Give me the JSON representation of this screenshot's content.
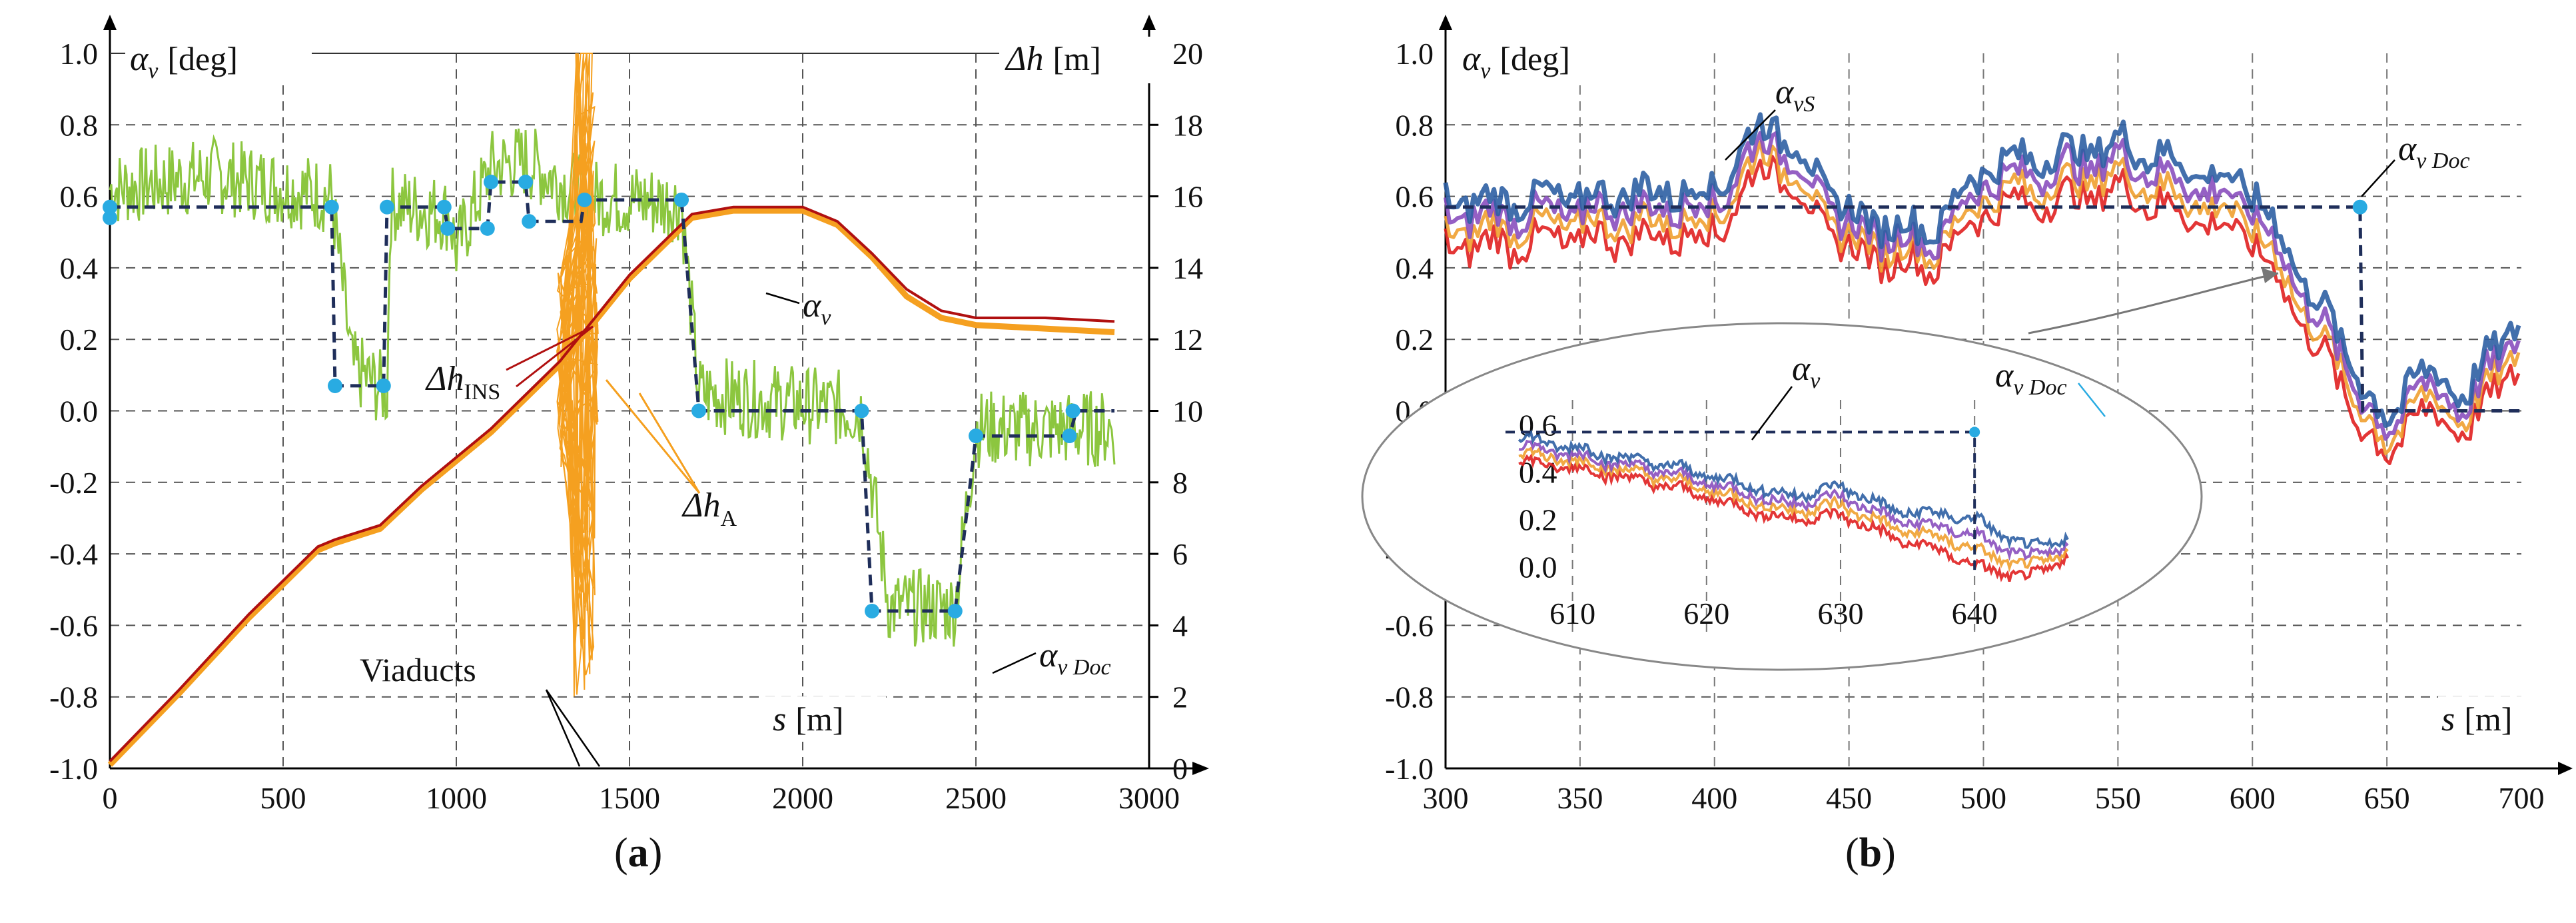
{
  "panel_a": {
    "caption": "a",
    "left_axis_symbol": "α",
    "left_axis_sub": "v",
    "left_axis_unit": "[deg]",
    "right_axis_symbol": "Δh",
    "right_axis_unit": "[m]",
    "x_axis_symbol": "s",
    "x_axis_unit": "[m]",
    "label_alpha": "α",
    "label_alpha_sub": "v",
    "label_alpha_doc": "α",
    "label_alpha_doc_sub": "v Doc",
    "label_dh_ins": "Δh",
    "label_dh_ins_sub": "INS",
    "label_dh_a": "Δh",
    "label_dh_a_sub": "A",
    "label_viaducts": "Viaducts"
  },
  "panel_b": {
    "caption": "b",
    "left_axis_symbol": "α",
    "left_axis_sub": "v",
    "left_axis_unit": "[deg]",
    "x_axis_symbol": "s",
    "x_axis_unit": "[m]",
    "label_alpha_vs": "α",
    "label_alpha_vs_sub": "vS",
    "label_alpha_doc": "α",
    "label_alpha_doc_sub": "v Doc",
    "inset_label_alpha": "α",
    "inset_label_alpha_sub": "v",
    "inset_label_doc": "α",
    "inset_label_doc_sub": "v Doc"
  },
  "colors": {
    "alpha_green": "#8cc63f",
    "dh_ins_red": "#b01010",
    "dh_a_orange": "#f5a020",
    "doc_dash": "#1f2e5a",
    "doc_points": "#29abe2",
    "series_blue": "#2e5fa3",
    "series_purple": "#8a4fbe",
    "series_red": "#e02020",
    "series_orange": "#f0a030"
  },
  "chart_data": [
    {
      "type": "line",
      "title": "(a)",
      "xlabel": "s [m]",
      "ylabel": "αv [deg]",
      "y2label": "Δh [m]",
      "xlim": [
        0,
        3000
      ],
      "ylim": [
        -1.0,
        1.0
      ],
      "y2lim": [
        0,
        20
      ],
      "x_ticks": [
        0,
        500,
        1000,
        1500,
        2000,
        2500,
        3000
      ],
      "y_ticks": [
        -1.0,
        -0.8,
        -0.6,
        -0.4,
        -0.2,
        0.0,
        0.2,
        0.4,
        0.6,
        0.8,
        1.0
      ],
      "y_tick_labels": [
        "-1.0",
        "-0.8",
        "-0.6",
        "-0.4",
        "-0.2",
        "0.0",
        "0.2",
        "0.4",
        "0.6",
        "0.8",
        "1.0"
      ],
      "y2_ticks": [
        0,
        2,
        4,
        6,
        8,
        10,
        12,
        14,
        16,
        18,
        20
      ],
      "series": [
        {
          "name": "αv Doc",
          "axis": "left",
          "style": "dashed-step",
          "points": [
            [
              0,
              0.57
            ],
            [
              640,
              0.57
            ],
            [
              650,
              0.07
            ],
            [
              790,
              0.07
            ],
            [
              800,
              0.57
            ],
            [
              965,
              0.57
            ],
            [
              975,
              0.51
            ],
            [
              1090,
              0.51
            ],
            [
              1100,
              0.64
            ],
            [
              1200,
              0.64
            ],
            [
              1210,
              0.53
            ],
            [
              1360,
              0.53
            ],
            [
              1370,
              0.59
            ],
            [
              1650,
              0.59
            ],
            [
              1700,
              0.0
            ],
            [
              2170,
              0.0
            ],
            [
              2200,
              -0.56
            ],
            [
              2440,
              -0.56
            ],
            [
              2500,
              -0.07
            ],
            [
              2770,
              -0.07
            ],
            [
              2790,
              0.0
            ],
            [
              2900,
              0.0
            ]
          ]
        },
        {
          "name": "Δh INS",
          "axis": "right",
          "points": [
            [
              0,
              0.2
            ],
            [
              200,
              2.2
            ],
            [
              400,
              4.3
            ],
            [
              600,
              6.2
            ],
            [
              650,
              6.4
            ],
            [
              780,
              6.8
            ],
            [
              900,
              7.9
            ],
            [
              1100,
              9.5
            ],
            [
              1300,
              11.4
            ],
            [
              1500,
              13.8
            ],
            [
              1680,
              15.5
            ],
            [
              1800,
              15.7
            ],
            [
              2000,
              15.7
            ],
            [
              2100,
              15.3
            ],
            [
              2200,
              14.4
            ],
            [
              2300,
              13.4
            ],
            [
              2400,
              12.8
            ],
            [
              2500,
              12.6
            ],
            [
              2700,
              12.6
            ],
            [
              2900,
              12.5
            ]
          ]
        },
        {
          "name": "Δh A",
          "axis": "right",
          "points": [
            [
              0,
              0.1
            ],
            [
              200,
              2.1
            ],
            [
              400,
              4.2
            ],
            [
              600,
              6.1
            ],
            [
              650,
              6.3
            ],
            [
              780,
              6.7
            ],
            [
              900,
              7.8
            ],
            [
              1100,
              9.4
            ],
            [
              1300,
              11.3
            ],
            [
              1500,
              13.7
            ],
            [
              1680,
              15.4
            ],
            [
              1800,
              15.6
            ],
            [
              2000,
              15.6
            ],
            [
              2100,
              15.2
            ],
            [
              2200,
              14.3
            ],
            [
              2300,
              13.2
            ],
            [
              2400,
              12.6
            ],
            [
              2500,
              12.4
            ],
            [
              2700,
              12.3
            ],
            [
              2900,
              12.2
            ]
          ]
        },
        {
          "name": "αv",
          "axis": "left",
          "points": [
            [
              0,
              0.62
            ],
            [
              300,
              0.66
            ],
            [
              640,
              0.6
            ],
            [
              700,
              0.12
            ],
            [
              800,
              0.05
            ],
            [
              810,
              0.58
            ],
            [
              980,
              0.55
            ],
            [
              1000,
              0.45
            ],
            [
              1100,
              0.68
            ],
            [
              1200,
              0.7
            ],
            [
              1370,
              0.6
            ],
            [
              1650,
              0.58
            ],
            [
              1700,
              0.05
            ],
            [
              2170,
              0.0
            ],
            [
              2250,
              -0.55
            ],
            [
              2440,
              -0.55
            ],
            [
              2500,
              -0.05
            ],
            [
              2900,
              -0.05
            ]
          ]
        }
      ],
      "doc_points": [
        [
          0,
          0.54
        ],
        [
          0,
          0.57
        ],
        [
          640,
          0.57
        ],
        [
          650,
          0.07
        ],
        [
          790,
          0.07
        ],
        [
          800,
          0.57
        ],
        [
          965,
          0.57
        ],
        [
          975,
          0.51
        ],
        [
          1090,
          0.51
        ],
        [
          1100,
          0.64
        ],
        [
          1200,
          0.64
        ],
        [
          1210,
          0.53
        ],
        [
          1370,
          0.59
        ],
        [
          1650,
          0.59
        ],
        [
          1700,
          0.0
        ],
        [
          2170,
          0.0
        ],
        [
          2200,
          -0.56
        ],
        [
          2440,
          -0.56
        ],
        [
          2500,
          -0.07
        ],
        [
          2770,
          -0.07
        ],
        [
          2780,
          0.0
        ]
      ]
    },
    {
      "type": "line",
      "title": "(b)",
      "xlabel": "s [m]",
      "ylabel": "αv [deg]",
      "xlim": [
        300,
        700
      ],
      "ylim": [
        -1.0,
        1.0
      ],
      "x_ticks": [
        300,
        350,
        400,
        450,
        500,
        550,
        600,
        650,
        700
      ],
      "y_ticks": [
        -1.0,
        -0.8,
        -0.6,
        -0.4,
        -0.2,
        0.0,
        0.2,
        0.4,
        0.6,
        0.8,
        1.0
      ],
      "y_tick_labels": [
        "-1.0",
        "-0.8",
        "-0.6",
        "-0.4",
        "-0.2",
        "0.0",
        "0.2",
        "0.4",
        "0.6",
        "0.8",
        "1.0"
      ],
      "series": [
        {
          "name": "αvS upper",
          "points": [
            [
              300,
              0.58
            ],
            [
              350,
              0.6
            ],
            [
              400,
              0.62
            ],
            [
              420,
              0.82
            ],
            [
              450,
              0.55
            ],
            [
              480,
              0.5
            ],
            [
              500,
              0.68
            ],
            [
              550,
              0.75
            ],
            [
              600,
              0.62
            ],
            [
              640,
              0.1
            ],
            [
              650,
              -0.05
            ],
            [
              660,
              0.12
            ],
            [
              680,
              0.05
            ],
            [
              700,
              0.28
            ]
          ]
        },
        {
          "name": "αvS lower",
          "points": [
            [
              300,
              0.46
            ],
            [
              350,
              0.48
            ],
            [
              400,
              0.5
            ],
            [
              420,
              0.7
            ],
            [
              450,
              0.44
            ],
            [
              480,
              0.4
            ],
            [
              500,
              0.56
            ],
            [
              550,
              0.62
            ],
            [
              600,
              0.48
            ],
            [
              640,
              -0.02
            ],
            [
              650,
              -0.15
            ],
            [
              660,
              0.0
            ],
            [
              680,
              -0.05
            ],
            [
              700,
              0.15
            ]
          ]
        },
        {
          "name": "αv Doc",
          "style": "dashed-step",
          "points": [
            [
              300,
              0.57
            ],
            [
              640,
              0.57
            ],
            [
              641,
              0.0
            ],
            [
              700,
              0.0
            ]
          ]
        }
      ],
      "inset": {
        "xlim": [
          605,
          647
        ],
        "ylim": [
          -0.05,
          0.65
        ],
        "x_ticks": [
          610,
          620,
          630,
          640
        ],
        "y_ticks": [
          0.0,
          0.2,
          0.4,
          0.6
        ],
        "y_tick_labels": [
          "0.0",
          "0.2",
          "0.4",
          "0.6"
        ],
        "doc_points": [
          [
            640,
            0.57
          ]
        ],
        "series": [
          {
            "name": "αv upper",
            "points": [
              [
                606,
                0.55
              ],
              [
                612,
                0.48
              ],
              [
                618,
                0.42
              ],
              [
                622,
                0.36
              ],
              [
                626,
                0.3
              ],
              [
                630,
                0.34
              ],
              [
                634,
                0.24
              ],
              [
                638,
                0.22
              ],
              [
                640,
                0.2
              ],
              [
                644,
                0.08
              ],
              [
                647,
                0.12
              ]
            ]
          },
          {
            "name": "αv lower",
            "points": [
              [
                606,
                0.45
              ],
              [
                612,
                0.4
              ],
              [
                618,
                0.33
              ],
              [
                622,
                0.26
              ],
              [
                626,
                0.2
              ],
              [
                630,
                0.22
              ],
              [
                634,
                0.12
              ],
              [
                638,
                0.06
              ],
              [
                640,
                0.0
              ],
              [
                644,
                -0.05
              ],
              [
                647,
                0.05
              ]
            ]
          }
        ]
      }
    }
  ]
}
